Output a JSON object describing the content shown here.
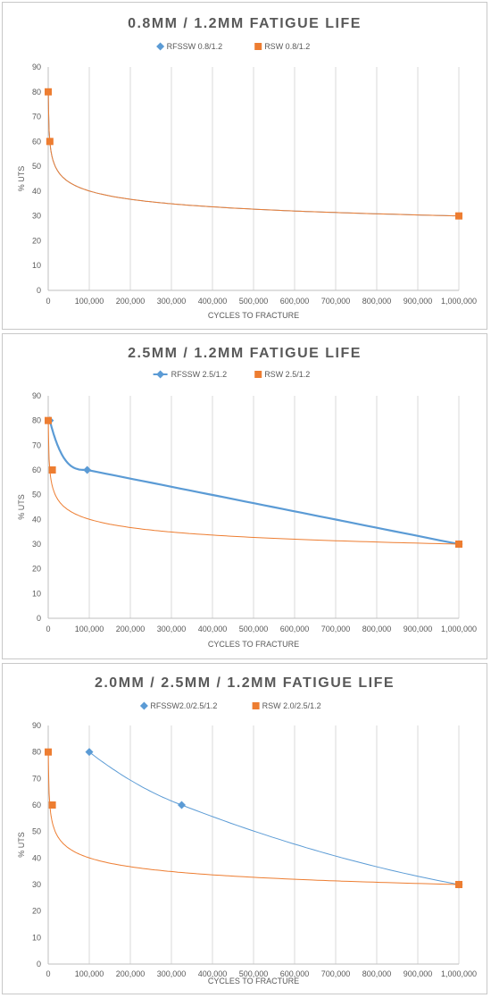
{
  "chart_data": [
    {
      "type": "scatter",
      "title": "0.8MM / 1.2MM FATIGUE LIFE",
      "xlabel": "CYCLES TO FRACTURE",
      "ylabel": "% UTS",
      "xlim": [
        0,
        1000000
      ],
      "ylim": [
        0,
        90
      ],
      "x_ticks": [
        "0",
        "100,000",
        "200,000",
        "300,000",
        "400,000",
        "500,000",
        "600,000",
        "700,000",
        "800,000",
        "900,000",
        "1,000,000"
      ],
      "y_ticks": [
        "0",
        "10",
        "20",
        "30",
        "40",
        "50",
        "60",
        "70",
        "80",
        "90"
      ],
      "grid": "vertical",
      "legend": "top-center",
      "series": [
        {
          "name": "RFSSW 0.8/1.2",
          "color": "#5b9bd5",
          "marker": "diamond",
          "line": "smooth-thin",
          "x": [
            0,
            4000,
            1000000
          ],
          "y": [
            80,
            60,
            30
          ],
          "show_markers": false
        },
        {
          "name": "RSW 0.8/1.2",
          "color": "#ed7d31",
          "marker": "square",
          "line": "smooth-thin",
          "x": [
            0,
            4000,
            1000000
          ],
          "y": [
            80,
            60,
            30
          ],
          "show_markers": true
        }
      ]
    },
    {
      "type": "line",
      "title": "2.5MM / 1.2MM FATIGUE LIFE",
      "xlabel": "CYCLES TO FRACTURE",
      "ylabel": "% UTS",
      "xlim": [
        0,
        1000000
      ],
      "ylim": [
        0,
        90
      ],
      "x_ticks": [
        "0",
        "100,000",
        "200,000",
        "300,000",
        "400,000",
        "500,000",
        "600,000",
        "700,000",
        "800,000",
        "900,000",
        "1,000,000"
      ],
      "y_ticks": [
        "0",
        "10",
        "20",
        "30",
        "40",
        "50",
        "60",
        "70",
        "80",
        "90"
      ],
      "grid": "vertical",
      "legend": "top-center",
      "series": [
        {
          "name": "RFSSW 2.5/1.2",
          "color": "#5b9bd5",
          "marker": "diamond",
          "line": "smooth-thick",
          "x": [
            4000,
            95000,
            1000000
          ],
          "y": [
            80,
            60,
            30
          ],
          "show_markers": true
        },
        {
          "name": "RSW 2.5/1.2",
          "color": "#ed7d31",
          "marker": "square",
          "line": "smooth-thin",
          "x": [
            0,
            10000,
            1000000
          ],
          "y": [
            80,
            60,
            30
          ],
          "show_markers": true
        }
      ]
    },
    {
      "type": "scatter",
      "title": "2.0MM / 2.5MM / 1.2MM FATIGUE LIFE",
      "xlabel": "CYCLES TO FRACTURE",
      "ylabel": "% UTS",
      "xlim": [
        0,
        1000000
      ],
      "ylim": [
        0,
        90
      ],
      "x_ticks": [
        "0",
        "100,000",
        "200,000",
        "300,000",
        "400,000",
        "500,000",
        "600,000",
        "700,000",
        "800,000",
        "900,000",
        "1,000,000"
      ],
      "y_ticks": [
        "0",
        "10",
        "20",
        "30",
        "40",
        "50",
        "60",
        "70",
        "80",
        "90"
      ],
      "grid": "vertical",
      "legend": "top-center",
      "series": [
        {
          "name": "RFSSW2.0/2.5/1.2",
          "color": "#5b9bd5",
          "marker": "diamond",
          "line": "smooth-thin",
          "x": [
            100000,
            325000,
            1000000
          ],
          "y": [
            80,
            60,
            30
          ],
          "show_markers": true
        },
        {
          "name": "RSW 2.0/2.5/1.2",
          "color": "#ed7d31",
          "marker": "square",
          "line": "smooth-thin",
          "x": [
            0,
            10000,
            1000000
          ],
          "y": [
            80,
            60,
            30
          ],
          "show_markers": true
        }
      ]
    }
  ]
}
